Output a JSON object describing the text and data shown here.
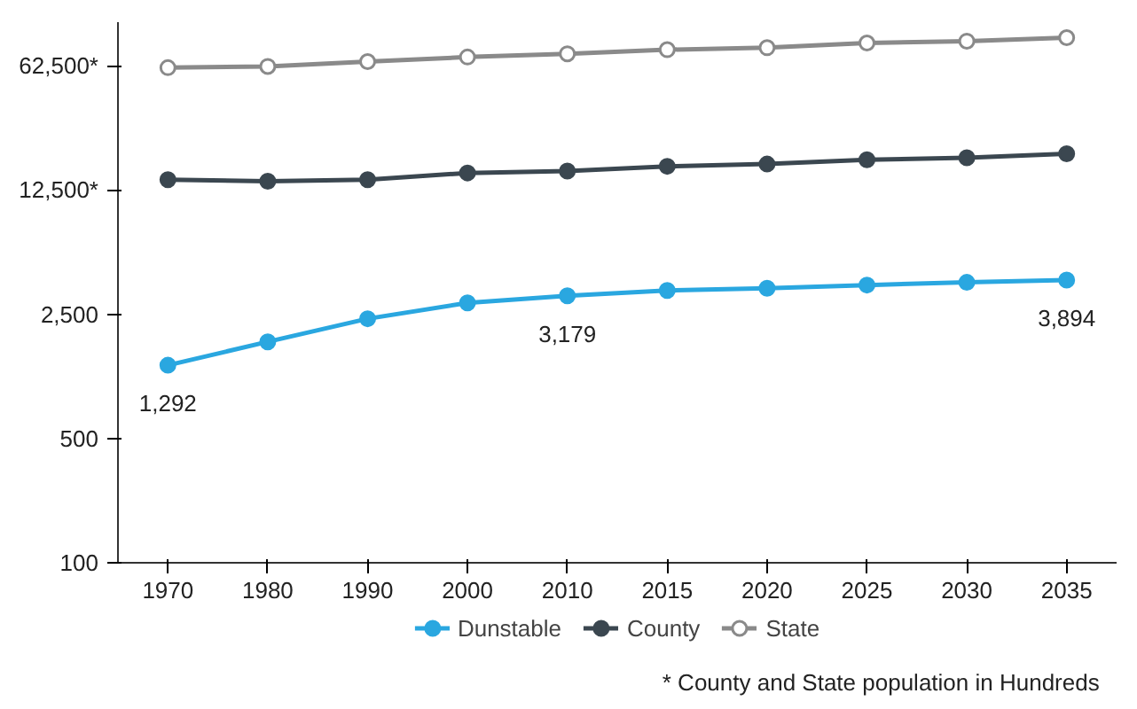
{
  "chart_data": {
    "type": "line",
    "log": "y",
    "categories": [
      "1970",
      "1980",
      "1990",
      "2000",
      "2010",
      "2015",
      "2020",
      "2025",
      "2030",
      "2035"
    ],
    "series": [
      {
        "name": "Dunstable",
        "color": "#2aa7e0",
        "values": [
          1292,
          1750,
          2360,
          2900,
          3179,
          3400,
          3500,
          3650,
          3780,
          3894
        ],
        "value_labels": [
          "1,292",
          null,
          null,
          null,
          "3,179",
          null,
          null,
          null,
          null,
          "3,894"
        ]
      },
      {
        "name": "County",
        "color": "#3b4750",
        "values": [
          14300,
          14000,
          14300,
          15600,
          16000,
          17000,
          17500,
          18500,
          19000,
          20000
        ]
      },
      {
        "name": "State",
        "color": "#8a8a8a",
        "values": [
          61000,
          62000,
          66000,
          70000,
          73000,
          77000,
          79000,
          84000,
          86000,
          90000
        ]
      }
    ],
    "ylim": [
      100,
      110000
    ],
    "yticks": [
      100,
      500,
      {
        "value": 2500,
        "label": "2,500"
      },
      {
        "value": 12500,
        "label": "12,500*"
      },
      {
        "value": 62500,
        "label": "62,500*"
      }
    ],
    "grid": false,
    "legend": "bottom",
    "marker": "circle",
    "line_style": "solid",
    "annotations": [
      "* County and State population in Hundreds"
    ]
  }
}
